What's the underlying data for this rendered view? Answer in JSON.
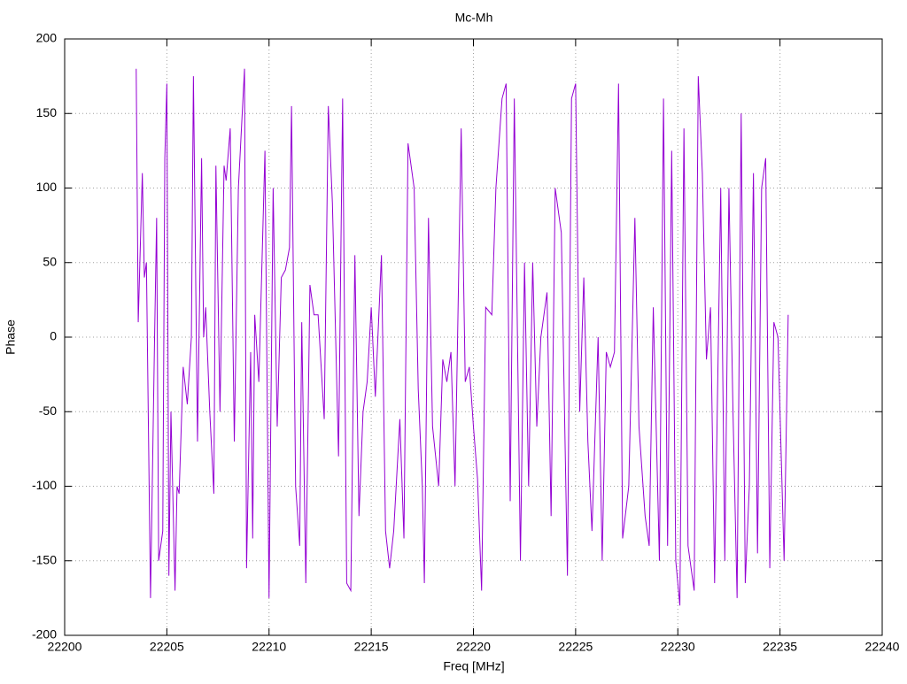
{
  "chart_data": {
    "type": "line",
    "title": "Mc-Mh",
    "x_label": "Freq [MHz]",
    "y_label": "Phase",
    "color": "#9400d3",
    "grid": true,
    "xlim": [
      22200,
      22240
    ],
    "xticks": [
      22200,
      22205,
      22210,
      22215,
      22220,
      22225,
      22230,
      22235,
      22240
    ],
    "ylim": [
      -200,
      200
    ],
    "yticks": [
      -200,
      -150,
      -100,
      -50,
      0,
      50,
      100,
      150,
      200
    ],
    "x": [
      22203.5,
      22203.6,
      22203.8,
      22203.9,
      22204.0,
      22204.2,
      22204.4,
      22204.5,
      22204.6,
      22204.8,
      22204.9,
      22205.0,
      22205.1,
      22205.2,
      22205.4,
      22205.5,
      22205.6,
      22205.8,
      22206.0,
      22206.2,
      22206.3,
      22206.5,
      22206.7,
      22206.8,
      22206.9,
      22207.1,
      22207.3,
      22207.4,
      22207.6,
      22207.8,
      22207.9,
      22208.1,
      22208.3,
      22208.5,
      22208.8,
      22208.9,
      22209.1,
      22209.2,
      22209.3,
      22209.5,
      22209.8,
      22210.0,
      22210.2,
      22210.4,
      22210.6,
      22210.8,
      22211.0,
      22211.1,
      22211.3,
      22211.5,
      22211.6,
      22211.8,
      22212.0,
      22212.2,
      22212.4,
      22212.7,
      22212.9,
      22213.1,
      22213.4,
      22213.6,
      22213.8,
      22214.0,
      22214.2,
      22214.4,
      22214.6,
      22214.8,
      22215.0,
      22215.2,
      22215.5,
      22215.7,
      22215.9,
      22216.1,
      22216.4,
      22216.6,
      22216.8,
      22217.1,
      22217.3,
      22217.5,
      22217.6,
      22217.8,
      22218.0,
      22218.3,
      22218.5,
      22218.7,
      22218.9,
      22219.1,
      22219.4,
      22219.6,
      22219.8,
      22220.0,
      22220.2,
      22220.4,
      22220.6,
      22220.9,
      22221.1,
      22221.4,
      22221.6,
      22221.8,
      22222.0,
      22222.3,
      22222.5,
      22222.7,
      22222.9,
      22223.1,
      22223.3,
      22223.6,
      22223.8,
      22224.0,
      22224.3,
      22224.6,
      22224.8,
      22225.0,
      22225.2,
      22225.4,
      22225.6,
      22225.8,
      22226.1,
      22226.3,
      22226.5,
      22226.7,
      22226.9,
      22227.1,
      22227.3,
      22227.6,
      22227.9,
      22228.1,
      22228.4,
      22228.6,
      22228.8,
      22229.1,
      22229.3,
      22229.5,
      22229.7,
      22229.9,
      22230.1,
      22230.3,
      22230.5,
      22230.8,
      22231.0,
      22231.2,
      22231.4,
      22231.6,
      22231.8,
      22232.1,
      22232.3,
      22232.5,
      22232.7,
      22232.9,
      22233.1,
      22233.3,
      22233.5,
      22233.7,
      22233.9,
      22234.1,
      22234.3,
      22234.5,
      22234.7,
      22234.9,
      22235.2,
      22235.4
    ],
    "values": [
      180,
      10,
      110,
      40,
      50,
      -175,
      0,
      80,
      -150,
      -130,
      120,
      170,
      -160,
      -50,
      -170,
      -100,
      -105,
      -20,
      -45,
      0,
      175,
      -70,
      120,
      0,
      20,
      -50,
      -105,
      115,
      -50,
      115,
      105,
      140,
      -70,
      100,
      180,
      -155,
      -10,
      -135,
      15,
      -30,
      125,
      -175,
      100,
      -60,
      40,
      45,
      60,
      155,
      -100,
      -140,
      10,
      -165,
      35,
      15,
      15,
      -55,
      155,
      90,
      -80,
      160,
      -165,
      -170,
      55,
      -120,
      -50,
      -30,
      20,
      -40,
      55,
      -130,
      -155,
      -130,
      -55,
      -135,
      130,
      100,
      -35,
      -100,
      -165,
      80,
      -60,
      -100,
      -15,
      -30,
      -10,
      -100,
      140,
      -30,
      -20,
      -60,
      -95,
      -170,
      20,
      15,
      100,
      160,
      170,
      -110,
      160,
      -150,
      50,
      -100,
      50,
      -60,
      0,
      30,
      -120,
      100,
      70,
      -160,
      160,
      170,
      -50,
      40,
      -70,
      -130,
      0,
      -150,
      -10,
      -20,
      -10,
      170,
      -135,
      -100,
      80,
      -60,
      -120,
      -140,
      20,
      -150,
      160,
      -140,
      125,
      -150,
      -180,
      140,
      -140,
      -170,
      175,
      110,
      -15,
      20,
      -165,
      100,
      -150,
      100,
      -50,
      -175,
      150,
      -165,
      -100,
      110,
      -145,
      100,
      120,
      -155,
      10,
      0,
      -150,
      15
    ]
  }
}
